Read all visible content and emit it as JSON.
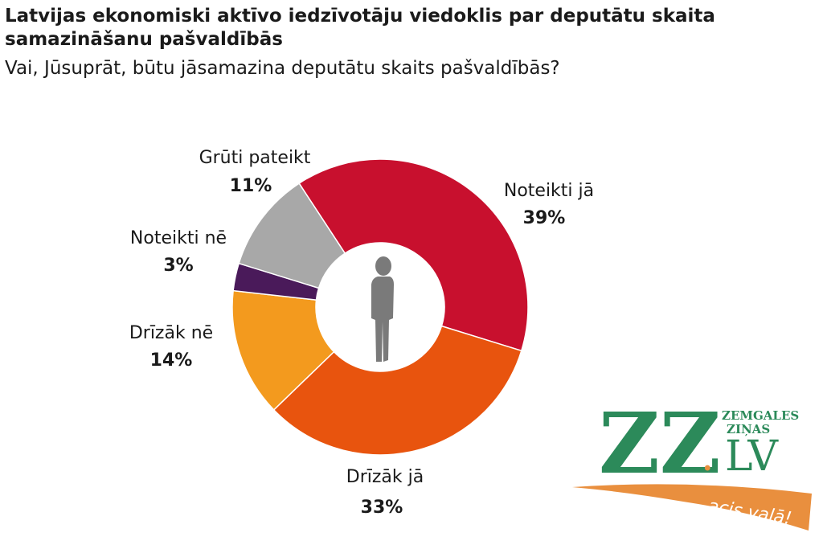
{
  "chart_data": {
    "type": "pie",
    "variant": "donut",
    "title": "Latvijas ekonomiski aktīvo iedzīvotāju viedoklis par deputātu skaita samazināšanu pašvaldībās",
    "subtitle": "Vai, Jūsuprāt, būtu jāsamazina deputātu skaits pašvaldībās?",
    "slices": [
      {
        "label": "Noteikti jā",
        "value": 39,
        "display": "39%",
        "color": "#c8102e"
      },
      {
        "label": "Drīzāk jā",
        "value": 33,
        "display": "33%",
        "color": "#e8540e"
      },
      {
        "label": "Drīzāk nē",
        "value": 14,
        "display": "14%",
        "color": "#f39a1e"
      },
      {
        "label": "Noteikti nē",
        "value": 3,
        "display": "3%",
        "color": "#4a1a5a"
      },
      {
        "label": "Grūti pateikt",
        "value": 11,
        "display": "11%",
        "color": "#a8a8a8"
      }
    ],
    "center_icon": "standing-person-icon"
  },
  "logo": {
    "main": "ZZ",
    "dot": ".",
    "domain": "LV",
    "top_line_1": "ZEMGALES",
    "top_line_2": "ZIŅAS",
    "slogan": "acis vaļā!",
    "colors": {
      "green": "#2c8a5a",
      "orange": "#e98f3e"
    }
  }
}
